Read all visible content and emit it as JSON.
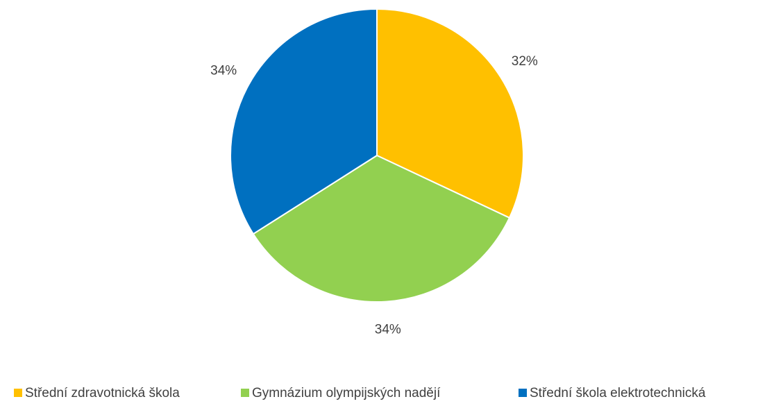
{
  "chart_data": {
    "type": "pie",
    "categories": [
      "Střední zdravotnická škola",
      "Gymnázium olympijských nadějí",
      "Střední škola elektrotechnická"
    ],
    "values": [
      32,
      34,
      34
    ],
    "value_labels": [
      "32%",
      "34%",
      "34%"
    ],
    "colors": [
      "#FFC000",
      "#92D050",
      "#0070C0"
    ],
    "legend": "bottom"
  }
}
